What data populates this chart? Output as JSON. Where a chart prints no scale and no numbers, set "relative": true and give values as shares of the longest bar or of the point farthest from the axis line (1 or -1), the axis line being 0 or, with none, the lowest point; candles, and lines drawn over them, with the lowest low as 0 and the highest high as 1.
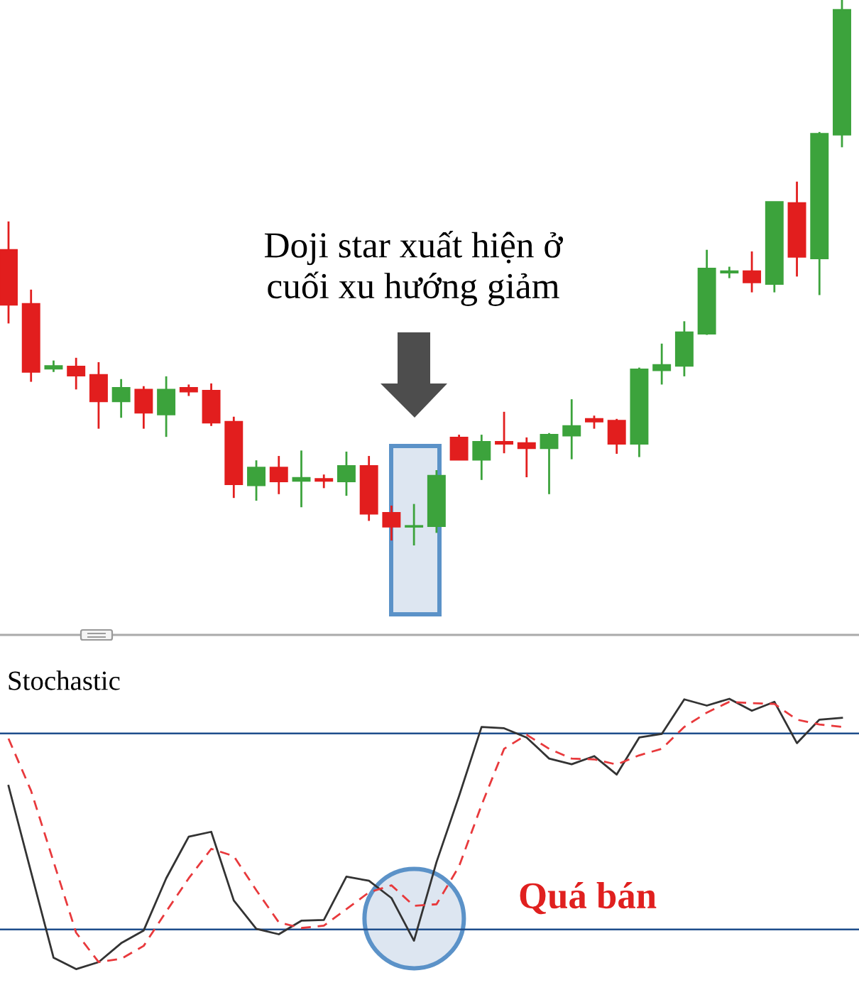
{
  "chart_data": [
    {
      "type": "candlestick",
      "relative": true,
      "tick_labels": false,
      "categories": [
        null,
        null,
        null,
        null,
        null,
        null,
        null,
        null,
        null,
        null,
        null,
        null,
        null,
        null,
        null,
        null,
        null,
        null,
        null,
        null,
        null,
        null,
        null,
        null,
        null,
        null,
        null,
        null,
        null,
        null,
        null,
        null,
        null,
        null,
        null,
        null,
        null,
        null
      ],
      "ohlc": [
        [
          0.542,
          0.594,
          0.407,
          0.441
        ],
        [
          0.443,
          0.469,
          0.3,
          0.318
        ],
        [
          0.324,
          0.339,
          0.318,
          0.329
        ],
        [
          0.328,
          0.344,
          0.286,
          0.311
        ],
        [
          0.313,
          0.336,
          0.214,
          0.264
        ],
        [
          0.264,
          0.305,
          0.234,
          0.289
        ],
        [
          0.286,
          0.292,
          0.214,
          0.243
        ],
        [
          0.24,
          0.31,
          0.199,
          0.286
        ],
        [
          0.289,
          0.295,
          0.274,
          0.282
        ],
        [
          0.284,
          0.297,
          0.219,
          0.225
        ],
        [
          0.227,
          0.236,
          0.087,
          0.112
        ],
        [
          0.11,
          0.156,
          0.082,
          0.143
        ],
        [
          0.143,
          0.164,
          0.094,
          0.117
        ],
        [
          0.118,
          0.174,
          0.07,
          0.124
        ],
        [
          0.122,
          0.13,
          0.105,
          0.118
        ],
        [
          0.117,
          0.172,
          0.091,
          0.146
        ],
        [
          0.146,
          0.164,
          0.045,
          0.058
        ],
        [
          0.06,
          0.073,
          0.009,
          0.034
        ],
        [
          0.034,
          0.076,
          0,
          0.036
        ],
        [
          0.035,
          0.138,
          0.023,
          0.128
        ],
        [
          0.198,
          0.203,
          0.157,
          0.157
        ],
        [
          0.157,
          0.203,
          0.12,
          0.19
        ],
        [
          0.19,
          0.245,
          0.169,
          0.186
        ],
        [
          0.188,
          0.198,
          0.125,
          0.178
        ],
        [
          0.178,
          0.206,
          0.094,
          0.203
        ],
        [
          0.201,
          0.268,
          0.158,
          0.219
        ],
        [
          0.232,
          0.238,
          0.214,
          0.227
        ],
        [
          0.229,
          0.232,
          0.168,
          0.186
        ],
        [
          0.186,
          0.326,
          0.162,
          0.323
        ],
        [
          0.321,
          0.37,
          0.295,
          0.331
        ],
        [
          0.329,
          0.411,
          0.31,
          0.391
        ],
        [
          0.388,
          0.542,
          0.386,
          0.508
        ],
        [
          0.5,
          0.511,
          0.49,
          0.503
        ],
        [
          0.503,
          0.539,
          0.464,
          0.482
        ],
        [
          0.479,
          0.63,
          0.464,
          0.63
        ],
        [
          0.628,
          0.667,
          0.493,
          0.529
        ],
        [
          0.526,
          0.758,
          0.459,
          0.755
        ],
        [
          0.753,
          1,
          0.73,
          0.982
        ]
      ],
      "colors": [
        "#e21e1e",
        "#e21e1e",
        "#3ca33c",
        "#e21e1e",
        "#e21e1e",
        "#3ca33c",
        "#e21e1e",
        "#3ca33c",
        "#e21e1e",
        "#e21e1e",
        "#e21e1e",
        "#3ca33c",
        "#e21e1e",
        "#3ca33c",
        "#e21e1e",
        "#3ca33c",
        "#e21e1e",
        "#e21e1e",
        "#3ca33c",
        "#3ca33c",
        "#e21e1e",
        "#3ca33c",
        "#e21e1e",
        "#e21e1e",
        "#3ca33c",
        "#3ca33c",
        "#e21e1e",
        "#e21e1e",
        "#3ca33c",
        "#3ca33c",
        "#3ca33c",
        "#3ca33c",
        "#3ca33c",
        "#e21e1e",
        "#3ca33c",
        "#e21e1e",
        "#3ca33c",
        "#3ca33c"
      ],
      "annotations": [
        "Doji star xuất hiện ở\ncuối xu hướng giảm"
      ]
    },
    {
      "type": "line",
      "title": "Stochastic",
      "relative": true,
      "tick_labels": false,
      "categories": [
        null,
        null,
        null,
        null,
        null,
        null,
        null,
        null,
        null,
        null,
        null,
        null,
        null,
        null,
        null,
        null,
        null,
        null,
        null,
        null,
        null,
        null,
        null,
        null,
        null,
        null,
        null,
        null,
        null,
        null,
        null,
        null,
        null,
        null,
        null,
        null,
        null,
        null
      ],
      "series": [
        {
          "color": "#333333",
          "line_style": "solid",
          "values": [
            0.678,
            0.359,
            0.042,
            0,
            0.026,
            0.096,
            0.143,
            0.336,
            0.49,
            0.508,
            0.254,
            0.149,
            0.129,
            0.179,
            0.182,
            0.342,
            0.327,
            0.263,
            0.105,
            0.396,
            0.64,
            0.896,
            0.891,
            0.857,
            0.779,
            0.758,
            0.788,
            0.72,
            0.857,
            0.87,
            0.998,
            0.975,
            1,
            0.956,
            0.989,
            0.836,
            0.923,
            0.93
          ]
        },
        {
          "color": "#e8393c",
          "line_style": "dashed",
          "values": [
            0.853,
            0.66,
            0.397,
            0.135,
            0.026,
            0.038,
            0.086,
            0.213,
            0.336,
            0.445,
            0.418,
            0.292,
            0.173,
            0.152,
            0.161,
            0.222,
            0.284,
            0.31,
            0.234,
            0.24,
            0.38,
            0.607,
            0.815,
            0.867,
            0.815,
            0.779,
            0.776,
            0.757,
            0.791,
            0.815,
            0.896,
            0.949,
            0.989,
            0.984,
            0.981,
            0.923,
            0.905,
            0.896
          ]
        }
      ],
      "ref_lines": [
        {
          "axis": "y",
          "value": 0.872,
          "color": "#1f4e8c"
        },
        {
          "axis": "y",
          "value": 0.147,
          "color": "#1f4e8c"
        }
      ],
      "annotations": [
        "Quá bán"
      ]
    }
  ]
}
